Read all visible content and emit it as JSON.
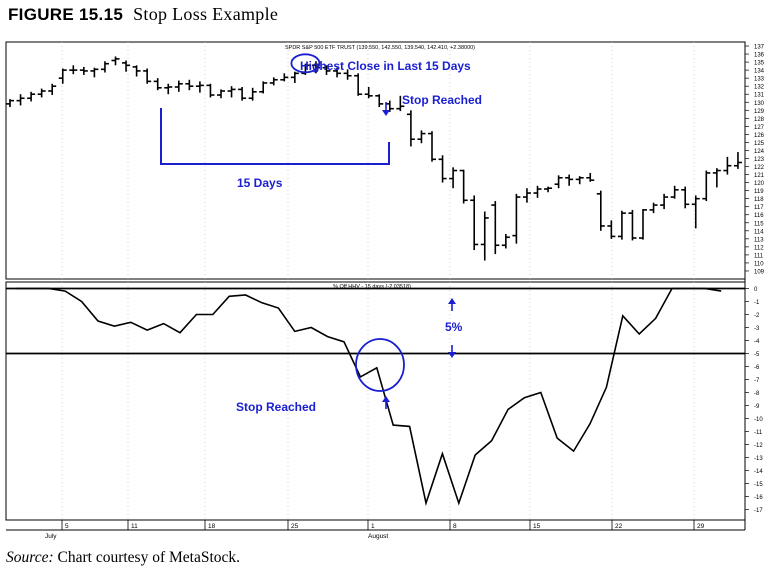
{
  "figure": {
    "label": "FIGURE 15.15",
    "title": "Stop Loss Example"
  },
  "source": {
    "prefix": "Source:",
    "text": "Chart courtesy of MetaStock."
  },
  "colors": {
    "annotation": "#1a1fcf",
    "price": "#000000",
    "grid": "#bfbfbf"
  },
  "chart_data": [
    {
      "type": "ohlc",
      "title": "SPDR S&P 500 ETF TRUST (139.550, 142.550, 139.540, 142.410, +2.38000)",
      "ylim": [
        108,
        137.5
      ],
      "y_ticks": [
        109,
        110,
        111,
        112,
        113,
        114,
        115,
        116,
        117,
        118,
        119,
        120,
        121,
        122,
        123,
        124,
        125,
        126,
        127,
        128,
        129,
        130,
        131,
        132,
        133,
        134,
        135,
        136,
        137
      ],
      "bars": [
        {
          "o": 129.8,
          "h": 130.4,
          "l": 129.4,
          "c": 130.2
        },
        {
          "o": 130.2,
          "h": 131.0,
          "l": 129.6,
          "c": 130.5
        },
        {
          "o": 130.5,
          "h": 131.3,
          "l": 130.1,
          "c": 131.0
        },
        {
          "o": 131.0,
          "h": 131.7,
          "l": 130.6,
          "c": 131.4
        },
        {
          "o": 131.4,
          "h": 132.3,
          "l": 130.9,
          "c": 132.0
        },
        {
          "o": 133.0,
          "h": 134.2,
          "l": 132.3,
          "c": 134.0
        },
        {
          "o": 134.0,
          "h": 134.6,
          "l": 133.5,
          "c": 134.0
        },
        {
          "o": 134.0,
          "h": 134.4,
          "l": 133.4,
          "c": 133.9
        },
        {
          "o": 133.9,
          "h": 134.3,
          "l": 133.1,
          "c": 134.1
        },
        {
          "o": 134.1,
          "h": 135.1,
          "l": 133.7,
          "c": 134.8
        },
        {
          "o": 135.2,
          "h": 135.7,
          "l": 134.6,
          "c": 135.4
        },
        {
          "o": 134.9,
          "h": 135.2,
          "l": 133.8,
          "c": 134.6
        },
        {
          "o": 134.4,
          "h": 134.6,
          "l": 133.2,
          "c": 133.9
        },
        {
          "o": 133.9,
          "h": 134.2,
          "l": 132.3,
          "c": 132.6
        },
        {
          "o": 132.6,
          "h": 133.0,
          "l": 131.5,
          "c": 131.8
        },
        {
          "o": 131.8,
          "h": 132.3,
          "l": 131.0,
          "c": 131.9
        },
        {
          "o": 131.9,
          "h": 132.7,
          "l": 131.3,
          "c": 132.3
        },
        {
          "o": 132.3,
          "h": 132.8,
          "l": 131.5,
          "c": 132.0
        },
        {
          "o": 132.0,
          "h": 132.6,
          "l": 131.2,
          "c": 132.1
        },
        {
          "o": 132.1,
          "h": 132.3,
          "l": 130.6,
          "c": 130.9
        },
        {
          "o": 130.9,
          "h": 131.6,
          "l": 130.5,
          "c": 131.4
        },
        {
          "o": 131.4,
          "h": 132.0,
          "l": 130.6,
          "c": 131.6
        },
        {
          "o": 131.6,
          "h": 131.9,
          "l": 130.2,
          "c": 130.5
        },
        {
          "o": 130.5,
          "h": 131.8,
          "l": 130.2,
          "c": 131.3
        },
        {
          "o": 131.3,
          "h": 132.6,
          "l": 131.1,
          "c": 132.4
        },
        {
          "o": 132.4,
          "h": 133.1,
          "l": 132.1,
          "c": 132.8
        },
        {
          "o": 132.8,
          "h": 133.6,
          "l": 132.6,
          "c": 133.1
        },
        {
          "o": 133.1,
          "h": 133.8,
          "l": 132.4,
          "c": 133.6
        },
        {
          "o": 133.6,
          "h": 134.8,
          "l": 133.4,
          "c": 134.6
        },
        {
          "o": 134.6,
          "h": 135.1,
          "l": 133.6,
          "c": 134.3
        },
        {
          "o": 134.3,
          "h": 134.6,
          "l": 133.4,
          "c": 133.9
        },
        {
          "o": 133.9,
          "h": 134.3,
          "l": 133.1,
          "c": 133.6
        },
        {
          "o": 133.6,
          "h": 134.1,
          "l": 132.8,
          "c": 133.3
        },
        {
          "o": 133.3,
          "h": 133.6,
          "l": 130.8,
          "c": 131.0
        },
        {
          "o": 131.0,
          "h": 131.9,
          "l": 130.5,
          "c": 130.8
        },
        {
          "o": 130.8,
          "h": 131.0,
          "l": 129.4,
          "c": 129.8
        },
        {
          "o": 129.8,
          "h": 130.2,
          "l": 128.8,
          "c": 129.2
        },
        {
          "o": 129.2,
          "h": 130.8,
          "l": 128.9,
          "c": 129.5
        },
        {
          "o": 128.5,
          "h": 129.0,
          "l": 124.5,
          "c": 125.4
        },
        {
          "o": 125.4,
          "h": 126.5,
          "l": 124.9,
          "c": 126.1
        },
        {
          "o": 126.1,
          "h": 126.4,
          "l": 122.6,
          "c": 122.9
        },
        {
          "o": 122.9,
          "h": 123.4,
          "l": 120.0,
          "c": 120.5
        },
        {
          "o": 120.5,
          "h": 121.9,
          "l": 119.3,
          "c": 121.5
        },
        {
          "o": 121.5,
          "h": 121.6,
          "l": 117.4,
          "c": 117.8
        },
        {
          "o": 117.8,
          "h": 118.4,
          "l": 111.6,
          "c": 112.3
        },
        {
          "o": 112.3,
          "h": 116.4,
          "l": 110.3,
          "c": 115.6
        },
        {
          "o": 117.2,
          "h": 117.7,
          "l": 111.1,
          "c": 112.2
        },
        {
          "o": 112.2,
          "h": 113.6,
          "l": 111.8,
          "c": 113.2
        },
        {
          "o": 113.4,
          "h": 118.6,
          "l": 112.4,
          "c": 118.2
        },
        {
          "o": 118.2,
          "h": 119.3,
          "l": 117.5,
          "c": 118.7
        },
        {
          "o": 118.7,
          "h": 119.6,
          "l": 118.1,
          "c": 119.2
        },
        {
          "o": 119.2,
          "h": 119.5,
          "l": 118.8,
          "c": 119.3
        },
        {
          "o": 119.8,
          "h": 120.9,
          "l": 119.3,
          "c": 120.6
        },
        {
          "o": 120.6,
          "h": 121.0,
          "l": 119.6,
          "c": 120.4
        },
        {
          "o": 120.4,
          "h": 120.8,
          "l": 119.8,
          "c": 120.6
        },
        {
          "o": 120.6,
          "h": 121.2,
          "l": 120.1,
          "c": 120.3
        },
        {
          "o": 118.6,
          "h": 119.0,
          "l": 114.0,
          "c": 114.6
        },
        {
          "o": 114.6,
          "h": 115.3,
          "l": 113.0,
          "c": 113.3
        },
        {
          "o": 113.3,
          "h": 116.5,
          "l": 112.9,
          "c": 116.2
        },
        {
          "o": 116.2,
          "h": 116.6,
          "l": 112.8,
          "c": 113.1
        },
        {
          "o": 113.1,
          "h": 116.7,
          "l": 112.9,
          "c": 116.6
        },
        {
          "o": 116.6,
          "h": 117.5,
          "l": 116.2,
          "c": 117.2
        },
        {
          "o": 117.2,
          "h": 118.6,
          "l": 116.7,
          "c": 118.2
        },
        {
          "o": 118.2,
          "h": 119.6,
          "l": 118.0,
          "c": 119.1
        },
        {
          "o": 119.1,
          "h": 119.5,
          "l": 116.8,
          "c": 117.3
        },
        {
          "o": 117.3,
          "h": 118.4,
          "l": 114.3,
          "c": 118.0
        },
        {
          "o": 118.0,
          "h": 121.5,
          "l": 117.7,
          "c": 121.2
        },
        {
          "o": 121.2,
          "h": 121.8,
          "l": 119.4,
          "c": 121.5
        },
        {
          "o": 121.5,
          "h": 123.2,
          "l": 121.0,
          "c": 122.1
        },
        {
          "o": 122.1,
          "h": 123.8,
          "l": 121.7,
          "c": 122.5
        }
      ]
    },
    {
      "type": "line",
      "title": "% Off HHV - 15 days (-2.03518)",
      "ylim": [
        -17.8,
        0.5
      ],
      "y_ticks": [
        0,
        -1,
        -2,
        -3,
        -4,
        -5,
        -6,
        -7,
        -8,
        -9,
        -10,
        -11,
        -12,
        -13,
        -14,
        -15,
        -16,
        -17
      ],
      "reference_lines": [
        0,
        -5
      ],
      "values": [
        0.0,
        0.0,
        0.0,
        -0.2,
        -1.0,
        -2.5,
        -2.9,
        -2.6,
        -3.2,
        -2.7,
        -3.4,
        -2.0,
        -2.0,
        -0.6,
        -0.5,
        -1.1,
        -1.5,
        -3.3,
        -3.0,
        -3.7,
        -4.1,
        -6.8,
        -6.1,
        -10.5,
        -10.6,
        -16.5,
        -12.7,
        -16.5,
        -12.8,
        -11.7,
        -9.3,
        -8.4,
        -8.0,
        -11.5,
        -12.5,
        -10.4,
        -7.6,
        -2.1,
        -3.5,
        -2.3,
        0.0,
        0.0,
        0.0,
        -0.2
      ]
    }
  ],
  "x_labels": [
    "5",
    "11",
    "18",
    "25",
    "1",
    "8",
    "15",
    "22",
    "29"
  ],
  "month_labels": [
    "July",
    "August"
  ],
  "annotations": {
    "highest_close": "Highest Close in Last 15 Days",
    "stop_reached_top": "Stop Reached",
    "fifteen_days": "15 Days",
    "five_percent": "5%",
    "stop_reached_bottom": "Stop Reached"
  }
}
